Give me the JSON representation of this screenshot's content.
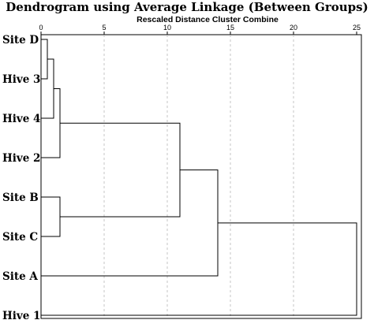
{
  "chart_data": {
    "type": "dendrogram",
    "title": "Dendrogram using Average Linkage (Between Groups)",
    "subtitle": "Rescaled Distance Cluster Combine",
    "xlim": [
      0,
      25
    ],
    "ticks": [
      0,
      5,
      10,
      15,
      20,
      25
    ],
    "tick_labels": [
      "0",
      "5",
      "10",
      "15",
      "20",
      "25"
    ],
    "grid": true,
    "leaves": [
      "Site D",
      "Hive 3",
      "Hive 4",
      "Hive 2",
      "Site B",
      "Site C",
      "Site A",
      "Hive 1"
    ],
    "merges": [
      {
        "a": "leaf:0",
        "b": "leaf:1",
        "distance": 0.5
      },
      {
        "a": "merge:0",
        "b": "leaf:2",
        "distance": 1.0
      },
      {
        "a": "leaf:4",
        "b": "leaf:5",
        "distance": 1.5
      },
      {
        "a": "merge:1",
        "b": "leaf:3",
        "distance": 1.5
      },
      {
        "a": "merge:3",
        "b": "merge:2",
        "distance": 11.0
      },
      {
        "a": "merge:4",
        "b": "leaf:6",
        "distance": 14.0
      },
      {
        "a": "merge:5",
        "b": "leaf:7",
        "distance": 25.0
      }
    ]
  }
}
